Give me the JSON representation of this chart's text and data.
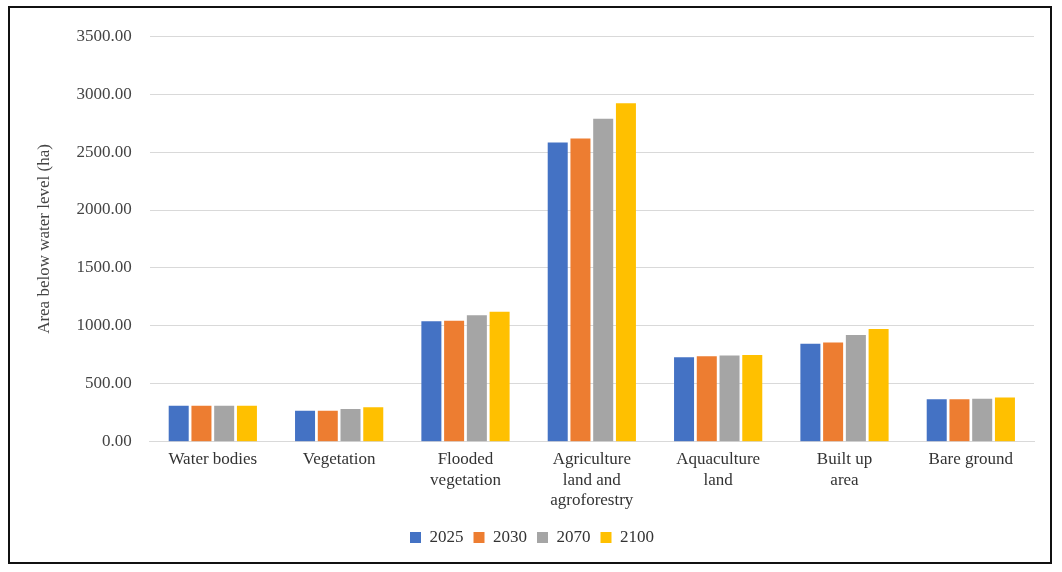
{
  "chart_data": {
    "type": "bar",
    "ylabel": "Area below water level (ha)",
    "categories": [
      "Water bodies",
      "Vegetation",
      "Flooded vegetation",
      "Agriculture land and agroforestry",
      "Aquaculture land",
      "Built up area",
      "Bare ground"
    ],
    "series": [
      {
        "name": "2025",
        "color": "#4472c4",
        "values": [
          312,
          268,
          1040,
          2583,
          730,
          847,
          368
        ]
      },
      {
        "name": "2030",
        "color": "#ed7d31",
        "values": [
          312,
          268,
          1045,
          2618,
          738,
          856,
          368
        ]
      },
      {
        "name": "2070",
        "color": "#a5a5a5",
        "values": [
          312,
          283,
          1093,
          2788,
          745,
          921,
          371
        ]
      },
      {
        "name": "2100",
        "color": "#ffc000",
        "values": [
          312,
          298,
          1122,
          2921,
          750,
          974,
          382
        ]
      }
    ],
    "ylim": [
      0,
      3500
    ],
    "yticks": [
      {
        "value": 0,
        "label": "0.00"
      },
      {
        "value": 500,
        "label": "500.00"
      },
      {
        "value": 1000,
        "label": "1000.00"
      },
      {
        "value": 1500,
        "label": "1500.00"
      },
      {
        "value": 2000,
        "label": "2000.00"
      },
      {
        "value": 2500,
        "label": "2500.00"
      },
      {
        "value": 3000,
        "label": "3000.00"
      },
      {
        "value": 3500,
        "label": "3500.00"
      }
    ],
    "grid": "y",
    "legend": "bottom"
  }
}
